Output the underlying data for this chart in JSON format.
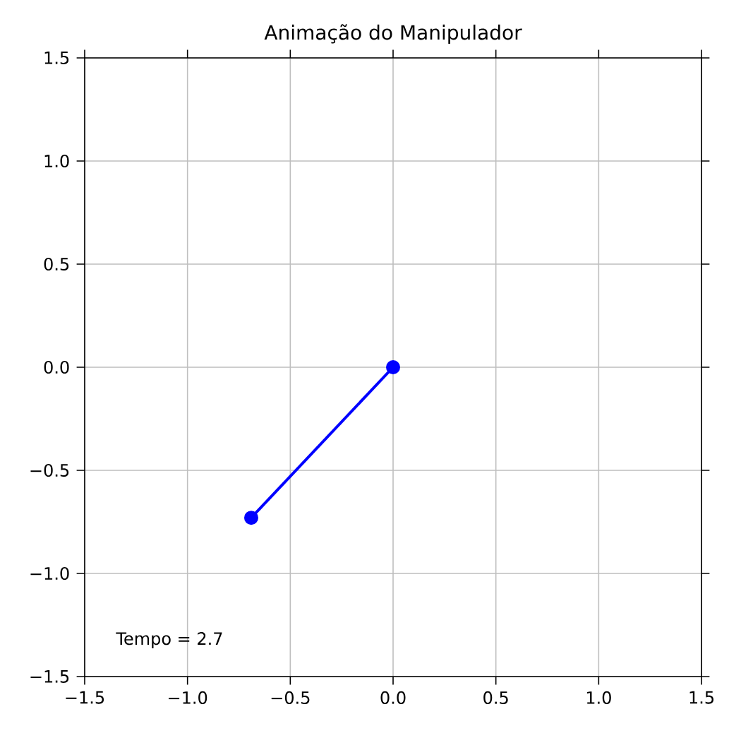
{
  "chart_data": {
    "type": "line",
    "title": "Animação do Manipulador",
    "x": [
      0,
      -0.69
    ],
    "series": [
      {
        "color": "#0000ff",
        "values": [
          0,
          -0.73
        ]
      }
    ],
    "marker": "circle",
    "line_style": "solid",
    "grid": true,
    "xlim": [
      -1.5,
      1.5
    ],
    "ylim": [
      -1.5,
      1.5
    ],
    "xticks": [
      {
        "value": -1.5,
        "label": "−1.5"
      },
      {
        "value": -1.0,
        "label": "−1.0"
      },
      {
        "value": -0.5,
        "label": "−0.5"
      },
      {
        "value": 0.0,
        "label": "0.0"
      },
      {
        "value": 0.5,
        "label": "0.5"
      },
      {
        "value": 1.0,
        "label": "1.0"
      },
      {
        "value": 1.5,
        "label": "1.5"
      }
    ],
    "yticks": [
      {
        "value": -1.5,
        "label": "−1.5"
      },
      {
        "value": -1.0,
        "label": "−1.0"
      },
      {
        "value": -0.5,
        "label": "−0.5"
      },
      {
        "value": 0.0,
        "label": "0.0"
      },
      {
        "value": 0.5,
        "label": "0.5"
      },
      {
        "value": 1.0,
        "label": "1.0"
      },
      {
        "value": 1.5,
        "label": "1.5"
      }
    ],
    "annotations": [
      "Tempo = 2.7"
    ]
  }
}
